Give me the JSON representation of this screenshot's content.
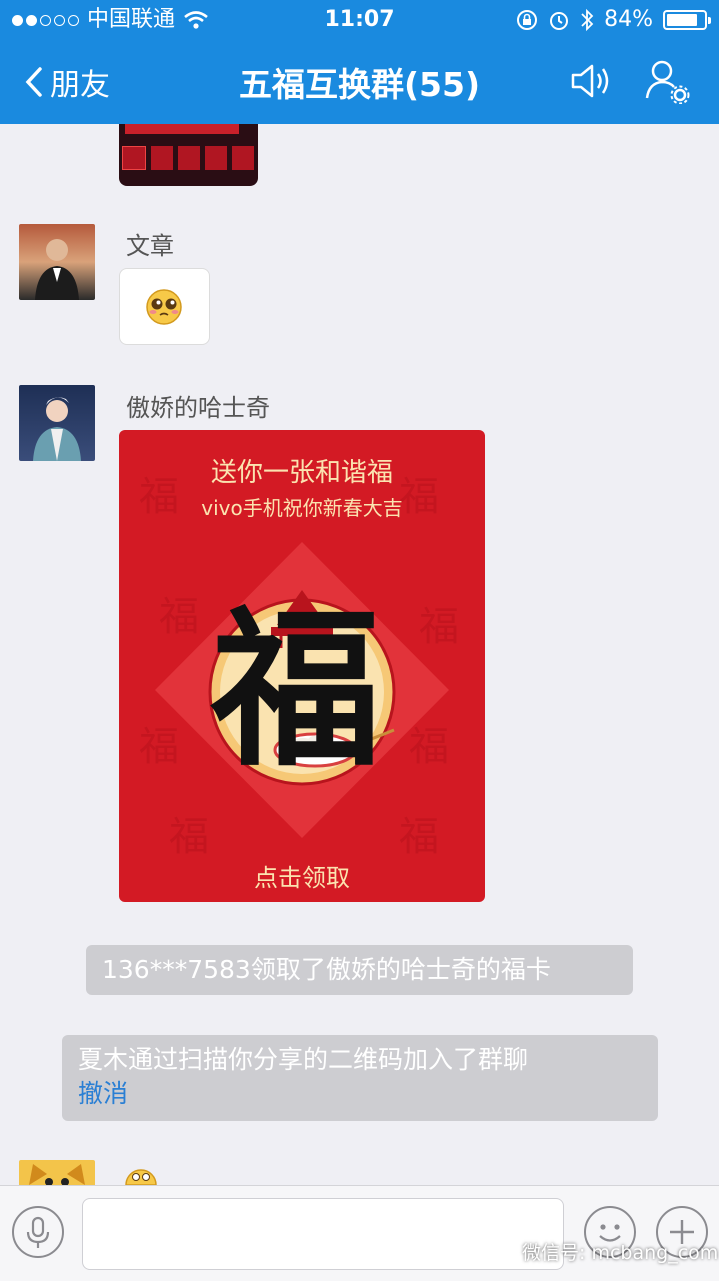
{
  "status_bar": {
    "carrier": "中国联通",
    "time": "11:07",
    "battery": "84%",
    "battery_level": 0.84
  },
  "header": {
    "back_label": "朋友",
    "title": "五福互换群(55)",
    "speaker_icon": "speaker-icon",
    "group_settings_icon": "group-settings-icon"
  },
  "messages": [
    {
      "sender": "文章",
      "content_type": "emoji"
    },
    {
      "sender": "傲娇的哈士奇",
      "content_type": "card"
    }
  ],
  "card": {
    "title": "送你一张和谐福",
    "subtitle": "vivo手机祝你新春大吉",
    "fu_character": "福",
    "action": "点击领取"
  },
  "notices": {
    "claim": "136***7583领取了傲娇的哈士奇的福卡",
    "join": "夏木通过扫描你分享的二维码加入了群聊",
    "join_action": "撤消"
  },
  "input_bar": {
    "voice_icon": "microphone-icon",
    "emoji_icon": "smiley-icon",
    "more_icon": "plus-icon"
  },
  "watermark": "微信号: mcbang_com",
  "colors": {
    "header": "#1a8adf",
    "card": "#d31a24",
    "card_text": "#fbe3b0",
    "link": "#2a7fd4"
  }
}
